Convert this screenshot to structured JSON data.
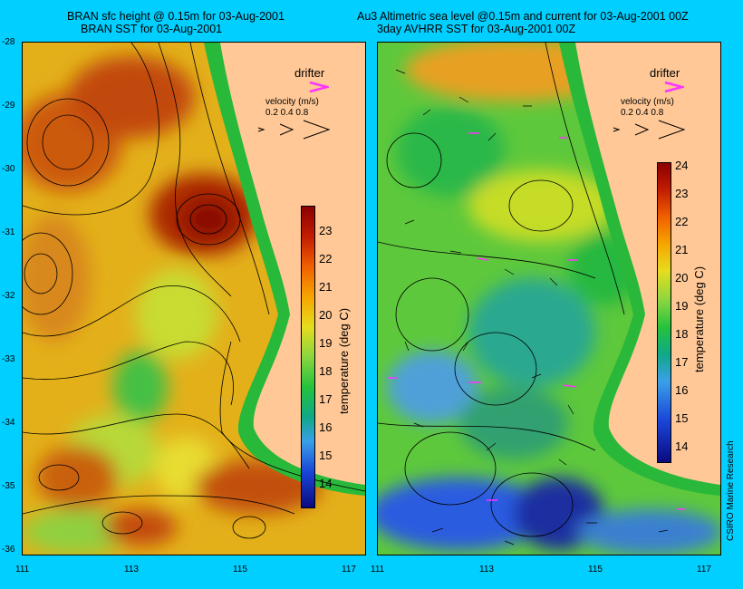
{
  "left_panel": {
    "title_line1": "BRAN sfc height @ 0.15m for 03-Aug-2001",
    "title_line2": "BRAN SST for 03-Aug-2001",
    "drifter_label": "drifter",
    "velocity_label": "velocity (m/s)",
    "velocity_scale": "0.2 0.4 0.8"
  },
  "right_panel": {
    "title_line1": "Au3 Altimetric sea level  @0.15m and current for 03-Aug-2001 00Z",
    "title_line2": "3day AVHRR SST for 03-Aug-2001 00Z",
    "drifter_label": "drifter",
    "velocity_label": "velocity (m/s)",
    "velocity_scale": "0.2 0.4 0.8"
  },
  "lat_ticks": [
    "-28",
    "-29",
    "-30",
    "-31",
    "-32",
    "-33",
    "-34",
    "-35",
    "-36"
  ],
  "lon_ticks": [
    "111",
    "113",
    "115",
    "117"
  ],
  "colorbar_left": {
    "title": "temperature (deg C)",
    "ticks": [
      "23",
      "22",
      "21",
      "20",
      "19",
      "18",
      "17",
      "16",
      "15",
      "14"
    ]
  },
  "colorbar_right": {
    "title": "temperature (deg C)",
    "ticks": [
      "24",
      "23",
      "22",
      "21",
      "20",
      "19",
      "18",
      "17",
      "16",
      "15",
      "14"
    ]
  },
  "credit": "CSIRO Marine Research",
  "colors": {
    "background": "#00cfff",
    "land": "#ffc896",
    "drifter_marker": "#ff33ff"
  }
}
